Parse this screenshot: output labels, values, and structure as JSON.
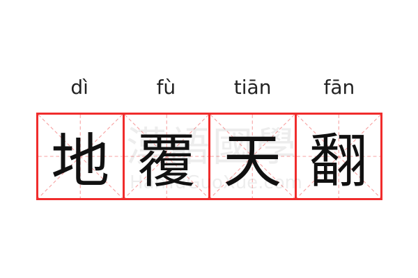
{
  "idiom": [
    {
      "pinyin": "dì",
      "char": "地"
    },
    {
      "pinyin": "fù",
      "char": "覆"
    },
    {
      "pinyin": "tiān",
      "char": "天"
    },
    {
      "pinyin": "fān",
      "char": "翻"
    }
  ],
  "watermark": {
    "logo": "漢語國學",
    "site": "HanYuGuoXue.com"
  },
  "colors": {
    "grid_border": "#f02c2c",
    "guide_lines": "#f7a0a0",
    "text": "#111111"
  }
}
